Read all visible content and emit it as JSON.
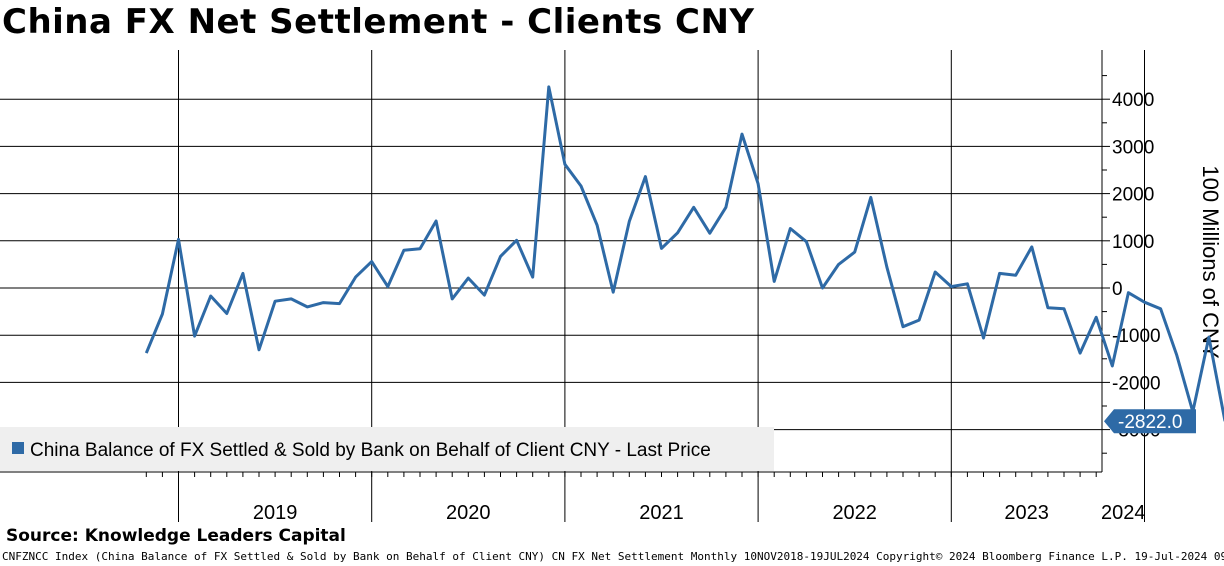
{
  "title": "China FX Net Settlement - Clients CNY",
  "source": "Source: Knowledge Leaders Capital",
  "footer": "CNFZNCC Index (China Balance of FX Settled & Sold by Bank on Behalf of Client CNY) CN FX Net Settlement  Monthly 10NOV2018-19JUL2024  Copyright© 2024 Bloomberg Finance L.P.   19-Jul-2024 09:11:01",
  "colors": {
    "line": "#2e6aa6",
    "last_price_tag": "#2e6aa6",
    "grid": "#000000",
    "legend_bg": "#efefef"
  },
  "chart_data": {
    "type": "line",
    "title": "China FX Net Settlement - Clients CNY",
    "ylabel": "100 Millions of CNY",
    "ylim": [
      -3800,
      5000
    ],
    "yticks": [
      -3000,
      -2000,
      -1000,
      0,
      1000,
      2000,
      3000,
      4000
    ],
    "ytick_labels": [
      "-3000",
      "-2000",
      "-1000",
      "0",
      "1000",
      "2000",
      "3000",
      "4000"
    ],
    "year_labels": [
      "2019",
      "2020",
      "2021",
      "2022",
      "2023",
      "2024"
    ],
    "grid": true,
    "legend_position": "bottom-left",
    "last_price_label": "-2822.0",
    "series": [
      {
        "name": "China Balance of FX Settled & Sold by Bank on Behalf of Client CNY - Last Price",
        "x": [
          "2018-11",
          "2018-12",
          "2019-01",
          "2019-02",
          "2019-03",
          "2019-04",
          "2019-05",
          "2019-06",
          "2019-07",
          "2019-08",
          "2019-09",
          "2019-10",
          "2019-11",
          "2019-12",
          "2020-01",
          "2020-02",
          "2020-03",
          "2020-04",
          "2020-05",
          "2020-06",
          "2020-07",
          "2020-08",
          "2020-09",
          "2020-10",
          "2020-11",
          "2020-12",
          "2021-01",
          "2021-02",
          "2021-03",
          "2021-04",
          "2021-05",
          "2021-06",
          "2021-07",
          "2021-08",
          "2021-09",
          "2021-10",
          "2021-11",
          "2021-12",
          "2022-01",
          "2022-02",
          "2022-03",
          "2022-04",
          "2022-05",
          "2022-06",
          "2022-07",
          "2022-08",
          "2022-09",
          "2022-10",
          "2022-11",
          "2022-12",
          "2023-01",
          "2023-02",
          "2023-03",
          "2023-04",
          "2023-05",
          "2023-06",
          "2023-07",
          "2023-08",
          "2023-09",
          "2023-10",
          "2023-11",
          "2023-12",
          "2024-01",
          "2024-02",
          "2024-03",
          "2024-04",
          "2024-05",
          "2024-06"
        ],
        "values": [
          -1380,
          -550,
          1030,
          -1020,
          -170,
          -540,
          310,
          -1310,
          -280,
          -230,
          -400,
          -310,
          -330,
          230,
          560,
          30,
          800,
          830,
          1420,
          -230,
          210,
          -150,
          670,
          1010,
          230,
          4260,
          2620,
          2160,
          1330,
          -90,
          1410,
          2360,
          840,
          1170,
          1710,
          1160,
          1710,
          3260,
          2210,
          140,
          1260,
          980,
          0,
          500,
          760,
          1920,
          440,
          -820,
          -680,
          340,
          30,
          90,
          -1060,
          310,
          270,
          870,
          -420,
          -440,
          -1380,
          -620,
          -1650,
          -100,
          -300,
          -440,
          -1420,
          -2620,
          -1040,
          -2822
        ]
      }
    ]
  }
}
